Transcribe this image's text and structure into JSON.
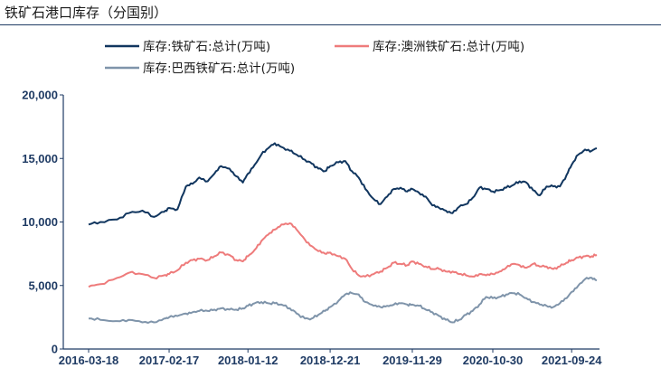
{
  "header": {
    "title": "铁矿石港口库存（分国别）"
  },
  "chart_data": {
    "type": "line",
    "title": "铁矿石港口库存（分国别）",
    "xlabel": "",
    "ylabel": "",
    "ylim": [
      0,
      20000
    ],
    "yticks": [
      0,
      5000,
      10000,
      15000,
      20000
    ],
    "ytick_labels": [
      "0",
      "5,000",
      "10,000",
      "15,000",
      "20,000"
    ],
    "xticks": [
      "2016-03-18",
      "2017-02-17",
      "2018-01-12",
      "2018-12-21",
      "2019-11-29",
      "2020-10-30",
      "2021-09-24"
    ],
    "grid": false,
    "legend_position": "top",
    "series": [
      {
        "name": "库存:铁矿石:总计(万吨)",
        "color": "#11365f",
        "points": [
          [
            "2016-03-18",
            9800
          ],
          [
            "2016-05-06",
            10000
          ],
          [
            "2016-07-15",
            10200
          ],
          [
            "2016-09-02",
            10700
          ],
          [
            "2016-10-28",
            10900
          ],
          [
            "2016-12-16",
            10400
          ],
          [
            "2017-01-27",
            10800
          ],
          [
            "2017-02-17",
            11100
          ],
          [
            "2017-03-24",
            11000
          ],
          [
            "2017-04-28",
            12800
          ],
          [
            "2017-05-26",
            13000
          ],
          [
            "2017-06-23",
            13500
          ],
          [
            "2017-07-28",
            13200
          ],
          [
            "2017-08-25",
            13800
          ],
          [
            "2017-09-22",
            14400
          ],
          [
            "2017-10-27",
            14200
          ],
          [
            "2017-11-24",
            13600
          ],
          [
            "2017-12-22",
            13100
          ],
          [
            "2018-01-12",
            13800
          ],
          [
            "2018-02-09",
            14500
          ],
          [
            "2018-03-09",
            15300
          ],
          [
            "2018-04-06",
            15800
          ],
          [
            "2018-05-04",
            16200
          ],
          [
            "2018-06-01",
            15900
          ],
          [
            "2018-07-06",
            15600
          ],
          [
            "2018-08-03",
            15300
          ],
          [
            "2018-09-07",
            14900
          ],
          [
            "2018-10-05",
            14600
          ],
          [
            "2018-11-02",
            14200
          ],
          [
            "2018-11-30",
            14000
          ],
          [
            "2018-12-21",
            14400
          ],
          [
            "2019-01-25",
            14700
          ],
          [
            "2019-02-22",
            14800
          ],
          [
            "2019-03-22",
            14000
          ],
          [
            "2019-04-19",
            13500
          ],
          [
            "2019-05-17",
            12600
          ],
          [
            "2019-06-21",
            11800
          ],
          [
            "2019-07-19",
            11400
          ],
          [
            "2019-08-16",
            12000
          ],
          [
            "2019-09-13",
            12600
          ],
          [
            "2019-10-11",
            12700
          ],
          [
            "2019-11-08",
            12400
          ],
          [
            "2019-11-29",
            12600
          ],
          [
            "2019-12-27",
            12300
          ],
          [
            "2020-01-24",
            12000
          ],
          [
            "2020-02-21",
            11300
          ],
          [
            "2020-03-20",
            11100
          ],
          [
            "2020-04-17",
            10900
          ],
          [
            "2020-05-15",
            10700
          ],
          [
            "2020-06-12",
            11200
          ],
          [
            "2020-07-10",
            11400
          ],
          [
            "2020-08-07",
            11900
          ],
          [
            "2020-09-04",
            12700
          ],
          [
            "2020-10-02",
            12600
          ],
          [
            "2020-10-30",
            12400
          ],
          [
            "2020-11-27",
            12500
          ],
          [
            "2020-12-25",
            12700
          ],
          [
            "2021-01-22",
            12900
          ],
          [
            "2021-02-19",
            13200
          ],
          [
            "2021-03-19",
            13100
          ],
          [
            "2021-04-16",
            12500
          ],
          [
            "2021-05-14",
            12100
          ],
          [
            "2021-06-11",
            12800
          ],
          [
            "2021-07-09",
            12800
          ],
          [
            "2021-08-06",
            12800
          ],
          [
            "2021-09-03",
            13700
          ],
          [
            "2021-09-24",
            14500
          ],
          [
            "2021-10-22",
            15300
          ],
          [
            "2021-11-19",
            15700
          ],
          [
            "2021-12-17",
            15600
          ],
          [
            "2022-01-07",
            15800
          ]
        ]
      },
      {
        "name": "库存:澳洲铁矿石:总计(万吨)",
        "color": "#ee7b7b",
        "points": [
          [
            "2016-03-18",
            4900
          ],
          [
            "2016-05-06",
            5100
          ],
          [
            "2016-07-15",
            5600
          ],
          [
            "2016-09-02",
            6000
          ],
          [
            "2016-10-28",
            5900
          ],
          [
            "2016-12-16",
            5600
          ],
          [
            "2017-01-27",
            5800
          ],
          [
            "2017-02-17",
            5900
          ],
          [
            "2017-03-24",
            6200
          ],
          [
            "2017-04-28",
            6800
          ],
          [
            "2017-05-26",
            7000
          ],
          [
            "2017-06-23",
            7100
          ],
          [
            "2017-07-28",
            7000
          ],
          [
            "2017-08-25",
            7300
          ],
          [
            "2017-09-22",
            7600
          ],
          [
            "2017-10-27",
            7400
          ],
          [
            "2017-11-24",
            7000
          ],
          [
            "2017-12-22",
            6900
          ],
          [
            "2018-01-12",
            7300
          ],
          [
            "2018-02-09",
            7800
          ],
          [
            "2018-03-09",
            8500
          ],
          [
            "2018-04-06",
            9000
          ],
          [
            "2018-05-04",
            9400
          ],
          [
            "2018-06-01",
            9800
          ],
          [
            "2018-07-06",
            9900
          ],
          [
            "2018-08-03",
            9400
          ],
          [
            "2018-09-07",
            8600
          ],
          [
            "2018-10-05",
            8100
          ],
          [
            "2018-11-02",
            7700
          ],
          [
            "2018-11-30",
            7500
          ],
          [
            "2018-12-21",
            7600
          ],
          [
            "2019-01-25",
            7300
          ],
          [
            "2019-02-22",
            7100
          ],
          [
            "2019-03-22",
            6300
          ],
          [
            "2019-04-19",
            5800
          ],
          [
            "2019-05-17",
            5700
          ],
          [
            "2019-06-21",
            5900
          ],
          [
            "2019-07-19",
            6100
          ],
          [
            "2019-08-16",
            6400
          ],
          [
            "2019-09-13",
            6800
          ],
          [
            "2019-10-11",
            6700
          ],
          [
            "2019-11-08",
            6600
          ],
          [
            "2019-11-29",
            6900
          ],
          [
            "2019-12-27",
            6700
          ],
          [
            "2020-01-24",
            6500
          ],
          [
            "2020-02-21",
            6300
          ],
          [
            "2020-03-20",
            6300
          ],
          [
            "2020-04-17",
            6100
          ],
          [
            "2020-05-15",
            6100
          ],
          [
            "2020-06-12",
            5900
          ],
          [
            "2020-07-10",
            5800
          ],
          [
            "2020-08-07",
            5700
          ],
          [
            "2020-09-04",
            5900
          ],
          [
            "2020-10-02",
            5800
          ],
          [
            "2020-10-30",
            5900
          ],
          [
            "2020-11-27",
            6100
          ],
          [
            "2020-12-25",
            6400
          ],
          [
            "2021-01-22",
            6700
          ],
          [
            "2021-02-19",
            6600
          ],
          [
            "2021-03-19",
            6400
          ],
          [
            "2021-04-16",
            6700
          ],
          [
            "2021-05-14",
            6500
          ],
          [
            "2021-06-11",
            6500
          ],
          [
            "2021-07-09",
            6300
          ],
          [
            "2021-08-06",
            6500
          ],
          [
            "2021-09-03",
            6800
          ],
          [
            "2021-09-24",
            7000
          ],
          [
            "2021-10-22",
            7200
          ],
          [
            "2021-11-19",
            7300
          ],
          [
            "2021-12-17",
            7300
          ],
          [
            "2022-01-07",
            7400
          ]
        ]
      },
      {
        "name": "库存:巴西铁矿石:总计(万吨)",
        "color": "#7f94aa",
        "points": [
          [
            "2016-03-18",
            2400
          ],
          [
            "2016-05-06",
            2300
          ],
          [
            "2016-07-15",
            2200
          ],
          [
            "2016-09-02",
            2300
          ],
          [
            "2016-10-28",
            2100
          ],
          [
            "2016-12-16",
            2100
          ],
          [
            "2017-01-27",
            2400
          ],
          [
            "2017-02-17",
            2500
          ],
          [
            "2017-03-24",
            2600
          ],
          [
            "2017-04-28",
            2800
          ],
          [
            "2017-05-26",
            2900
          ],
          [
            "2017-06-23",
            3000
          ],
          [
            "2017-07-28",
            3000
          ],
          [
            "2017-08-25",
            3100
          ],
          [
            "2017-09-22",
            3200
          ],
          [
            "2017-10-27",
            3100
          ],
          [
            "2017-11-24",
            3100
          ],
          [
            "2017-12-22",
            3200
          ],
          [
            "2018-01-12",
            3400
          ],
          [
            "2018-02-09",
            3600
          ],
          [
            "2018-03-09",
            3700
          ],
          [
            "2018-04-06",
            3600
          ],
          [
            "2018-05-04",
            3600
          ],
          [
            "2018-06-01",
            3500
          ],
          [
            "2018-07-06",
            3200
          ],
          [
            "2018-08-03",
            2800
          ],
          [
            "2018-09-07",
            2400
          ],
          [
            "2018-10-05",
            2400
          ],
          [
            "2018-11-02",
            2700
          ],
          [
            "2018-11-30",
            3000
          ],
          [
            "2018-12-21",
            3300
          ],
          [
            "2019-01-25",
            3800
          ],
          [
            "2019-02-22",
            4300
          ],
          [
            "2019-03-22",
            4400
          ],
          [
            "2019-04-19",
            4300
          ],
          [
            "2019-05-17",
            3700
          ],
          [
            "2019-06-21",
            3400
          ],
          [
            "2019-07-19",
            3300
          ],
          [
            "2019-08-16",
            3400
          ],
          [
            "2019-09-13",
            3500
          ],
          [
            "2019-10-11",
            3600
          ],
          [
            "2019-11-08",
            3500
          ],
          [
            "2019-11-29",
            3500
          ],
          [
            "2019-12-27",
            3400
          ],
          [
            "2020-01-24",
            3100
          ],
          [
            "2020-02-21",
            2900
          ],
          [
            "2020-03-20",
            2600
          ],
          [
            "2020-04-17",
            2300
          ],
          [
            "2020-05-15",
            2100
          ],
          [
            "2020-06-12",
            2300
          ],
          [
            "2020-07-10",
            2700
          ],
          [
            "2020-08-07",
            3000
          ],
          [
            "2020-09-04",
            3500
          ],
          [
            "2020-10-02",
            4100
          ],
          [
            "2020-10-30",
            4000
          ],
          [
            "2020-11-27",
            4100
          ],
          [
            "2020-12-25",
            4300
          ],
          [
            "2021-01-22",
            4400
          ],
          [
            "2021-02-19",
            4300
          ],
          [
            "2021-03-19",
            4000
          ],
          [
            "2021-04-16",
            3700
          ],
          [
            "2021-05-14",
            3500
          ],
          [
            "2021-06-11",
            3400
          ],
          [
            "2021-07-09",
            3300
          ],
          [
            "2021-08-06",
            3600
          ],
          [
            "2021-09-03",
            4000
          ],
          [
            "2021-09-24",
            4500
          ],
          [
            "2021-10-22",
            5000
          ],
          [
            "2021-11-19",
            5500
          ],
          [
            "2021-12-17",
            5600
          ],
          [
            "2022-01-07",
            5400
          ]
        ]
      }
    ]
  }
}
